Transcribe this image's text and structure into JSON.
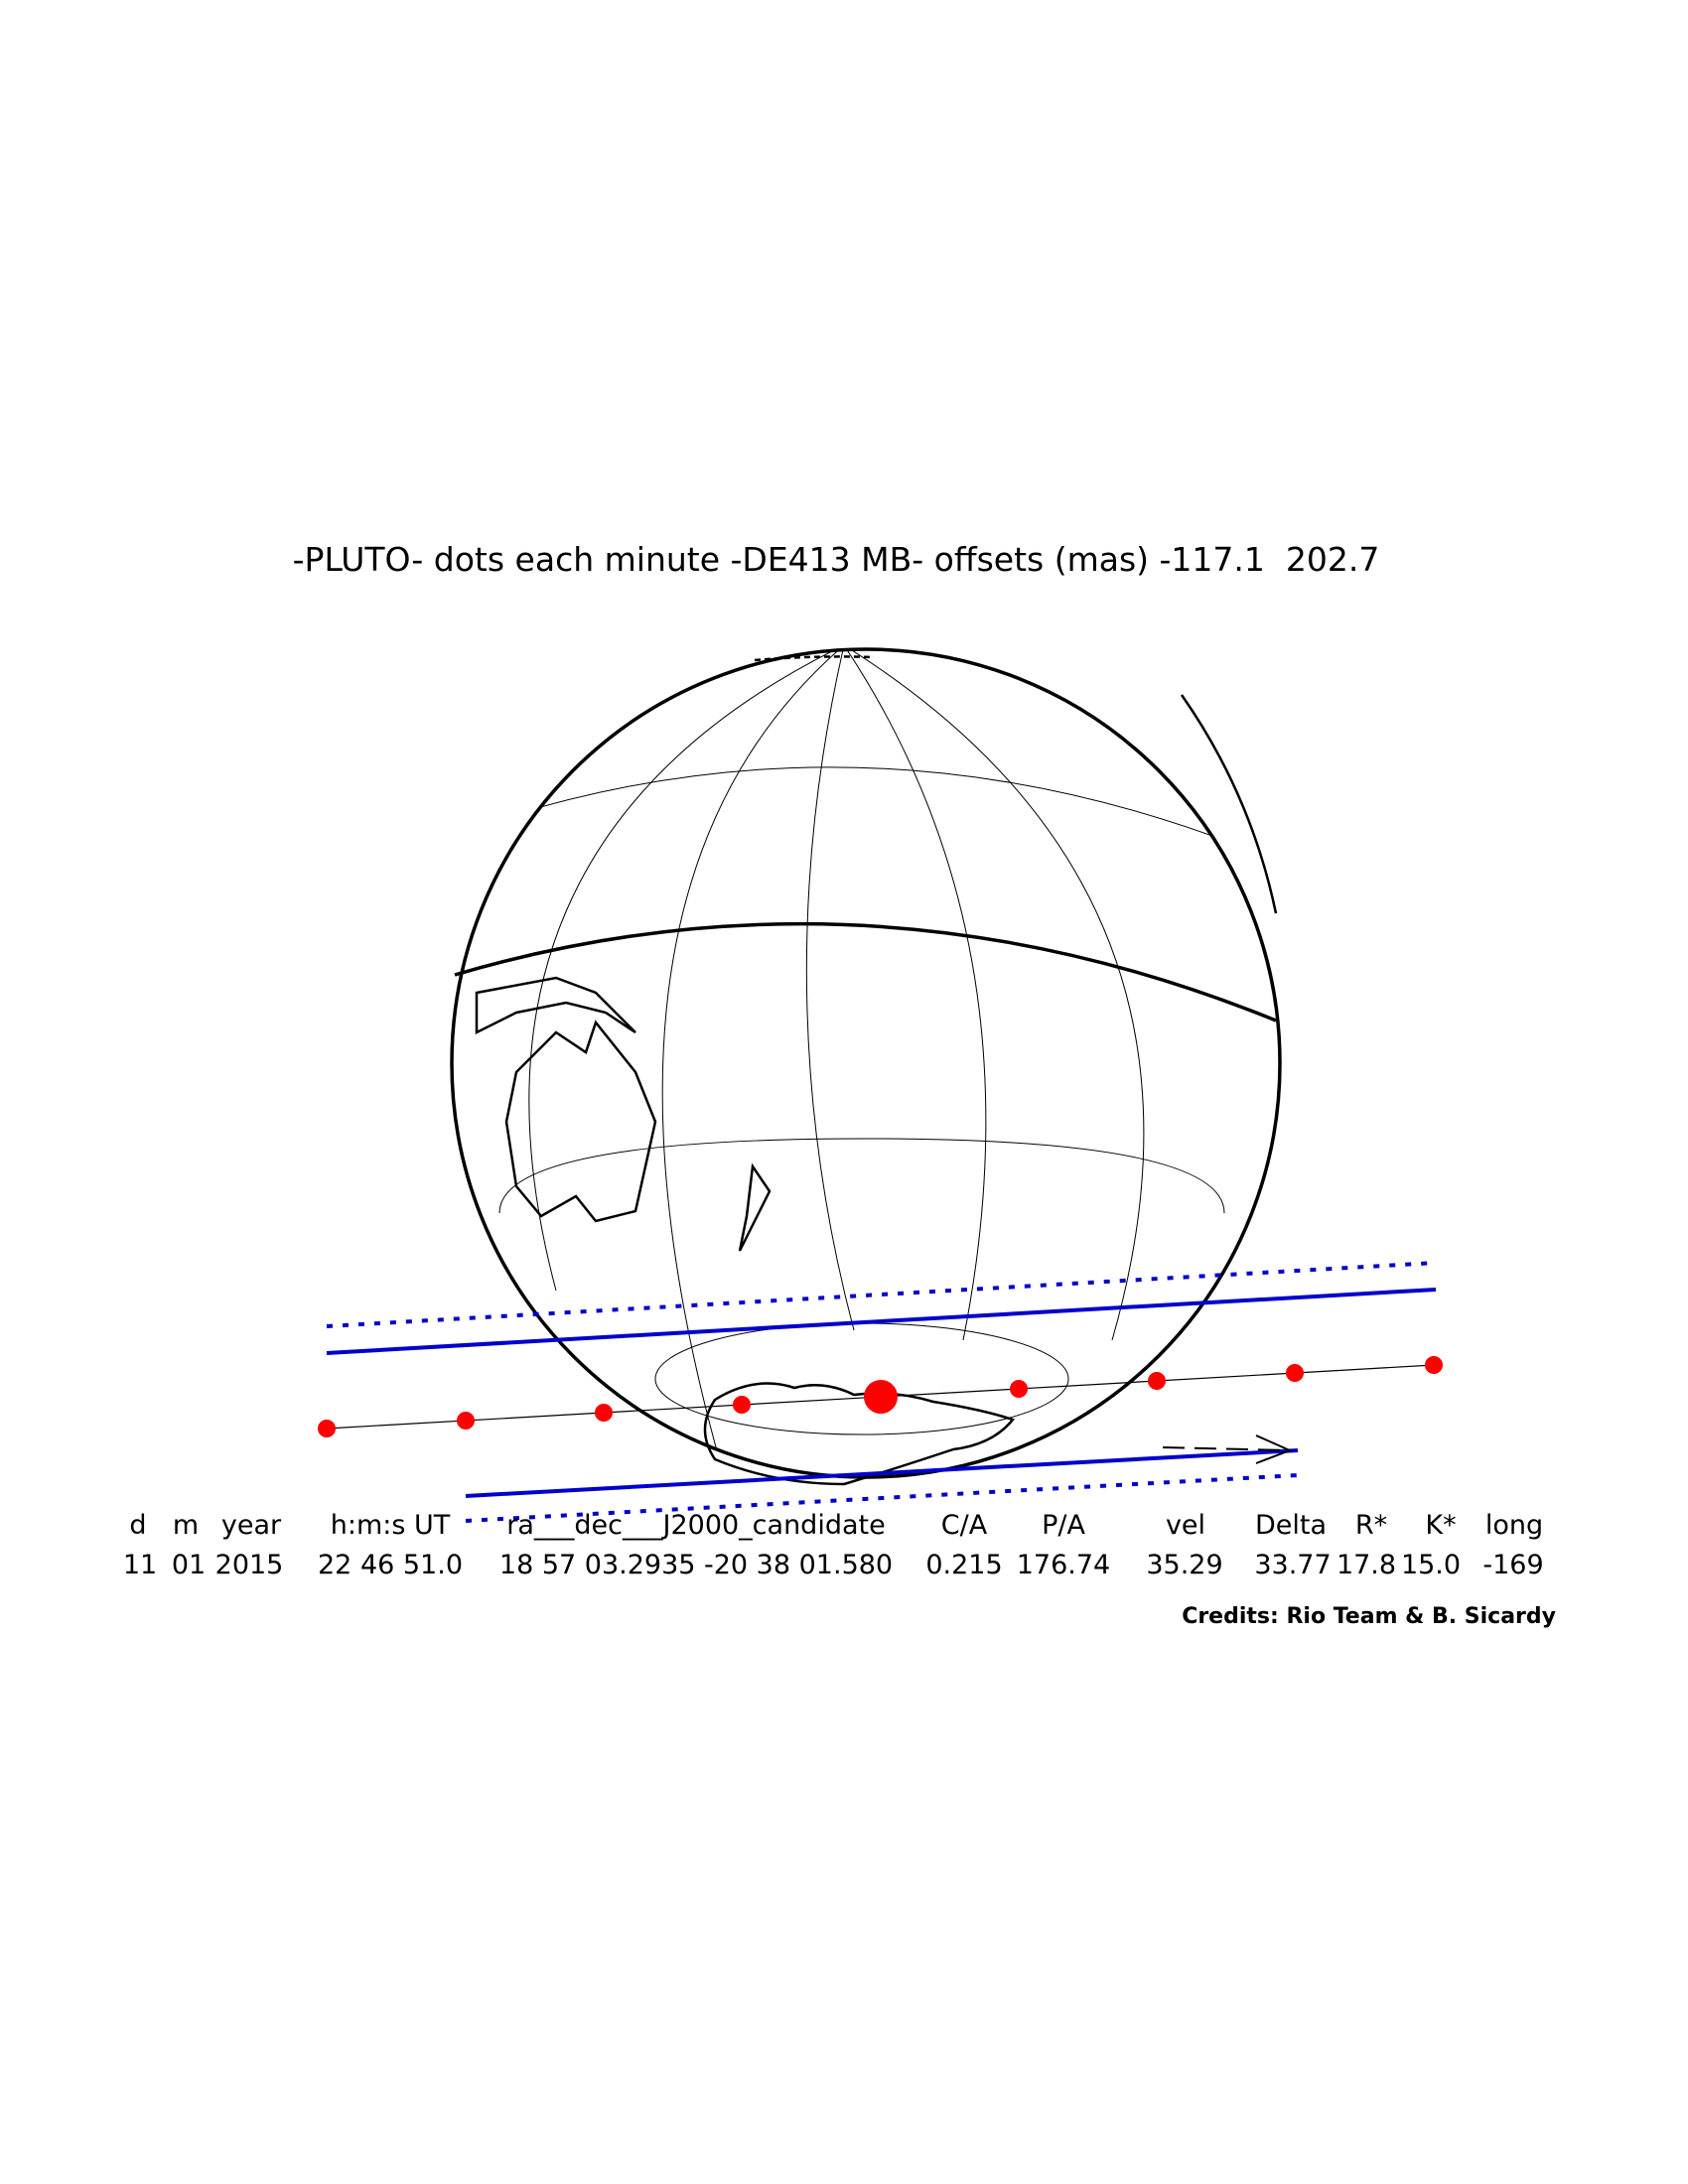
{
  "header": {
    "title": "-PLUTO- dots each minute -DE413 MB- offsets (mas) -117.1  202.7"
  },
  "table": {
    "columns": [
      "d",
      "m",
      "year",
      "h:m:s UT",
      "ra___dec___J2000_candidate",
      "C/A",
      "P/A",
      "vel",
      "Delta",
      "R*",
      "K*",
      "long"
    ],
    "rows": [
      [
        "11",
        "01",
        "2015",
        "22 46 51.0",
        "18 57 03.2935 -20 38 01.580",
        "0.215",
        "176.74",
        "35.29",
        "33.77",
        "17.8",
        "15.0",
        "-169"
      ]
    ]
  },
  "credits": "Credits: Rio Team & B. Sicardy"
}
